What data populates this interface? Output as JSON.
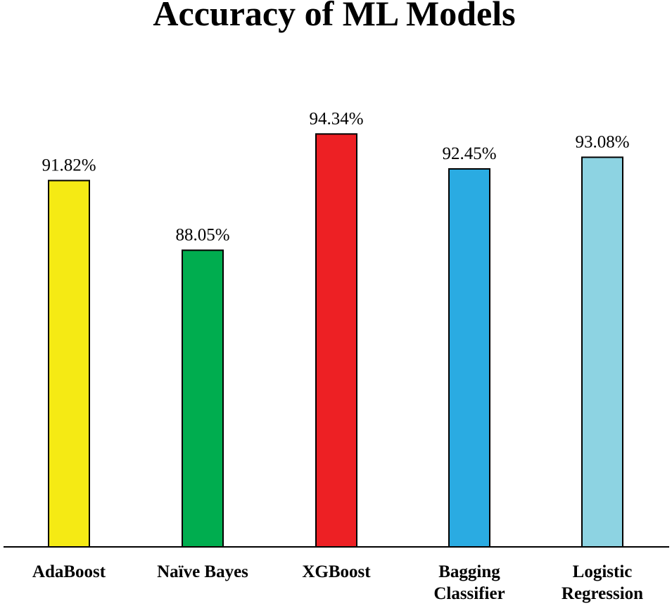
{
  "chart_data": {
    "type": "bar",
    "title": "Accuracy of ML Models",
    "xlabel": "",
    "ylabel": "",
    "ylim": [
      72,
      96
    ],
    "grid": false,
    "legend": "none",
    "categories": [
      [
        "AdaBoost"
      ],
      [
        "Naïve Bayes"
      ],
      [
        "XGBoost"
      ],
      [
        "Bagging",
        "Classifier"
      ],
      [
        "Logistic",
        "Regression"
      ]
    ],
    "values": [
      91.82,
      88.05,
      94.34,
      92.45,
      93.08
    ],
    "value_labels": [
      "91.82%",
      "88.05%",
      "94.34%",
      "92.45%",
      "93.08%"
    ],
    "colors": [
      "#f5ea14",
      "#00ad4f",
      "#ed2024",
      "#2aabe2",
      "#8dd3e2"
    ]
  }
}
